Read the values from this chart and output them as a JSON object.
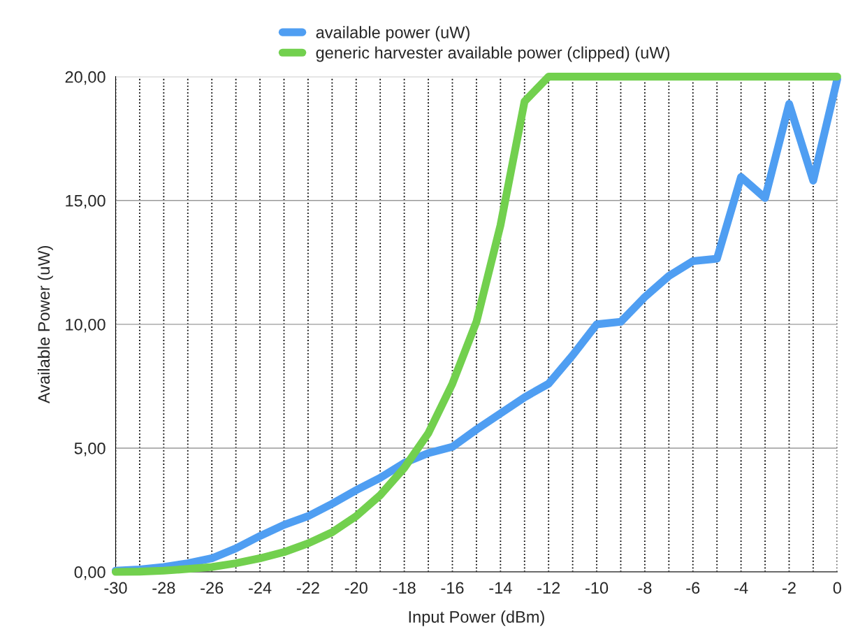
{
  "chart_data": {
    "type": "line",
    "xlabel": "Input Power (dBm)",
    "ylabel": "Available Power (uW)",
    "x": [
      -30,
      -29,
      -28,
      -27,
      -26,
      -25,
      -24,
      -23,
      -22,
      -21,
      -20,
      -19,
      -18,
      -17,
      -16,
      -15,
      -14,
      -13,
      -12,
      -11,
      -10,
      -9,
      -8,
      -7,
      -6,
      -5,
      -4,
      -3,
      -2,
      -1,
      0
    ],
    "series": [
      {
        "name": "available power (uW)",
        "color": "#4f9ef2",
        "values": [
          0.05,
          0.1,
          0.2,
          0.35,
          0.55,
          0.95,
          1.45,
          1.9,
          2.25,
          2.75,
          3.3,
          3.8,
          4.4,
          4.8,
          5.05,
          5.75,
          6.4,
          7.05,
          7.6,
          8.75,
          10.0,
          10.1,
          11.1,
          11.95,
          12.55,
          12.65,
          15.95,
          15.1,
          18.9,
          15.8,
          19.9
        ]
      },
      {
        "name": "generic harvester available power (clipped) (uW)",
        "color": "#72d04e",
        "values": [
          0.0,
          0.01,
          0.05,
          0.12,
          0.2,
          0.35,
          0.55,
          0.8,
          1.15,
          1.6,
          2.25,
          3.1,
          4.2,
          5.6,
          7.6,
          10.1,
          14.0,
          19.0,
          20,
          20,
          20,
          20,
          20,
          20,
          20,
          20,
          20,
          20,
          20,
          20,
          20
        ]
      }
    ],
    "xlim": [
      -30,
      0
    ],
    "xticks": [
      -30,
      {
        "value": -29,
        "label": null
      },
      -28,
      {
        "value": -27,
        "label": null
      },
      -26,
      {
        "value": -25,
        "label": null
      },
      -24,
      {
        "value": -23,
        "label": null
      },
      -22,
      {
        "value": -21,
        "label": null
      },
      -20,
      {
        "value": -19,
        "label": null
      },
      -18,
      {
        "value": -17,
        "label": null
      },
      -16,
      {
        "value": -15,
        "label": null
      },
      -14,
      {
        "value": -13,
        "label": null
      },
      -12,
      {
        "value": -11,
        "label": null
      },
      -10,
      {
        "value": -9,
        "label": null
      },
      -8,
      {
        "value": -7,
        "label": null
      },
      -6,
      {
        "value": -5,
        "label": null
      },
      -4,
      {
        "value": -3,
        "label": null
      },
      -2,
      {
        "value": -1,
        "label": null
      },
      0
    ],
    "ylim": [
      0,
      20
    ],
    "yticks": [
      {
        "value": 0,
        "label": "0,00"
      },
      {
        "value": 5,
        "label": "5,00"
      },
      {
        "value": 10,
        "label": "10,00"
      },
      {
        "value": 15,
        "label": "15,00"
      },
      {
        "value": 20,
        "label": "20,00"
      }
    ],
    "grid": true,
    "legend": "top",
    "line_style": "solid",
    "marker": "none"
  }
}
